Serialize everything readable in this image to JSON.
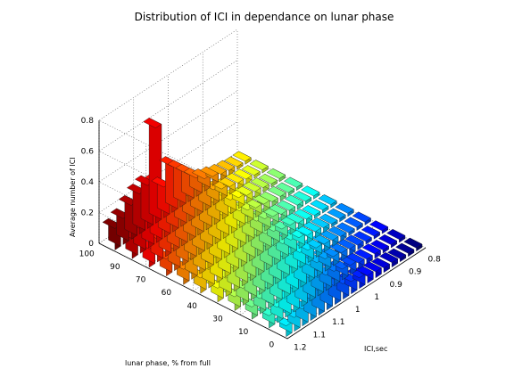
{
  "chart_data": {
    "type": "bar3d",
    "title": "Distribution of ICI in dependance on lunar phase",
    "xlabel": "lunar phase, % from full",
    "ylabel": "ICI,sec",
    "zlabel": "Average number of ICI",
    "x_tick_labels": [
      "0",
      "10",
      "30",
      "40",
      "60",
      "70",
      "90",
      "100"
    ],
    "y_tick_labels": [
      "1.2",
      "1.1",
      "1.1",
      "1",
      "1",
      "0.9",
      "0.9",
      "0.8"
    ],
    "z_ticks": [
      0,
      0.2,
      0.4,
      0.6,
      0.8
    ],
    "zlim": [
      0,
      0.8
    ],
    "grid": true,
    "colormap": "jet",
    "rows": [
      "100",
      "90",
      "80",
      "70",
      "60",
      "50",
      "40",
      "30",
      "20",
      "10",
      "0"
    ],
    "y_bins": [
      0.8,
      0.825,
      0.85,
      0.875,
      0.9,
      0.925,
      0.95,
      0.975,
      1.0,
      1.025,
      1.05,
      1.075,
      1.1,
      1.125,
      1.15,
      1.175,
      1.2
    ],
    "values": [
      [
        0.14,
        0.17,
        0.22,
        0.26,
        0.28,
        0.62,
        0.2,
        0.3,
        0.24,
        0.18,
        0.12,
        0.08,
        0.06,
        0.04,
        0.03,
        0.02,
        0.02
      ],
      [
        0.13,
        0.16,
        0.2,
        0.38,
        0.26,
        0.22,
        0.18,
        0.16,
        0.2,
        0.15,
        0.1,
        0.07,
        0.05,
        0.04,
        0.03,
        0.02,
        0.02
      ],
      [
        0.12,
        0.15,
        0.19,
        0.22,
        0.25,
        0.24,
        0.19,
        0.17,
        0.14,
        0.12,
        0.09,
        0.07,
        0.05,
        0.04,
        0.03,
        0.02,
        0.02
      ],
      [
        0.11,
        0.14,
        0.18,
        0.21,
        0.34,
        0.23,
        0.18,
        0.15,
        0.13,
        0.11,
        0.08,
        0.06,
        0.05,
        0.03,
        0.03,
        0.02,
        0.02
      ],
      [
        0.1,
        0.13,
        0.17,
        0.2,
        0.22,
        0.2,
        0.17,
        0.14,
        0.12,
        0.1,
        0.08,
        0.06,
        0.04,
        0.03,
        0.03,
        0.02,
        0.02
      ],
      [
        0.1,
        0.12,
        0.16,
        0.3,
        0.21,
        0.19,
        0.16,
        0.13,
        0.11,
        0.09,
        0.07,
        0.06,
        0.04,
        0.03,
        0.02,
        0.02,
        0.02
      ],
      [
        0.09,
        0.12,
        0.15,
        0.18,
        0.2,
        0.18,
        0.15,
        0.12,
        0.1,
        0.09,
        0.07,
        0.05,
        0.04,
        0.03,
        0.02,
        0.02,
        0.02
      ],
      [
        0.09,
        0.11,
        0.14,
        0.17,
        0.28,
        0.17,
        0.14,
        0.12,
        0.1,
        0.08,
        0.06,
        0.05,
        0.04,
        0.03,
        0.02,
        0.02,
        0.02
      ],
      [
        0.08,
        0.1,
        0.13,
        0.16,
        0.18,
        0.16,
        0.13,
        0.11,
        0.09,
        0.08,
        0.06,
        0.05,
        0.04,
        0.03,
        0.02,
        0.02,
        0.02
      ],
      [
        0.08,
        0.1,
        0.12,
        0.15,
        0.17,
        0.15,
        0.12,
        0.1,
        0.09,
        0.07,
        0.06,
        0.04,
        0.03,
        0.03,
        0.02,
        0.02,
        0.02
      ],
      [
        0.07,
        0.09,
        0.11,
        0.14,
        0.16,
        0.14,
        0.12,
        0.1,
        0.08,
        0.07,
        0.05,
        0.04,
        0.03,
        0.03,
        0.02,
        0.02,
        0.02
      ]
    ]
  }
}
